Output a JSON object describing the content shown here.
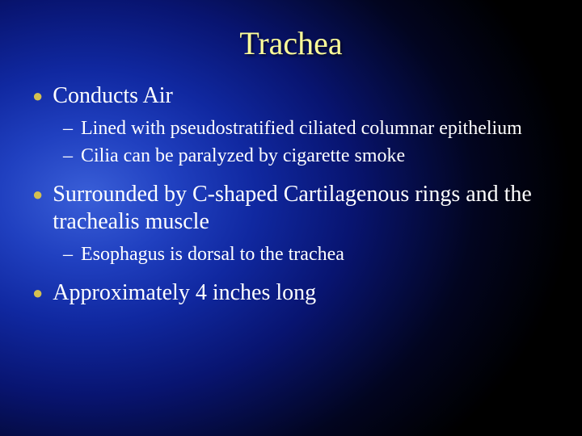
{
  "slide": {
    "title": "Trachea",
    "title_color": "#ffff99",
    "title_fontsize": 40,
    "body_fontsize_l1": 28,
    "body_fontsize_l2": 24,
    "text_color": "#ffffff",
    "bullet_color": "#d4c050",
    "background_gradient": {
      "type": "radial",
      "center": "15% 45%",
      "stops": [
        "#3a5fd8",
        "#2040c0",
        "#1028a0",
        "#081470",
        "#020520",
        "#000000"
      ]
    },
    "items": [
      {
        "text": "Conducts Air",
        "sub": [
          "Lined with pseudostratified ciliated columnar epithelium",
          "Cilia can be paralyzed by cigarette smoke"
        ]
      },
      {
        "text": "Surrounded by C-shaped Cartilagenous rings and the trachealis muscle",
        "sub": [
          "Esophagus is dorsal to the trachea"
        ]
      },
      {
        "text": "Approximately 4 inches long",
        "sub": []
      }
    ]
  }
}
